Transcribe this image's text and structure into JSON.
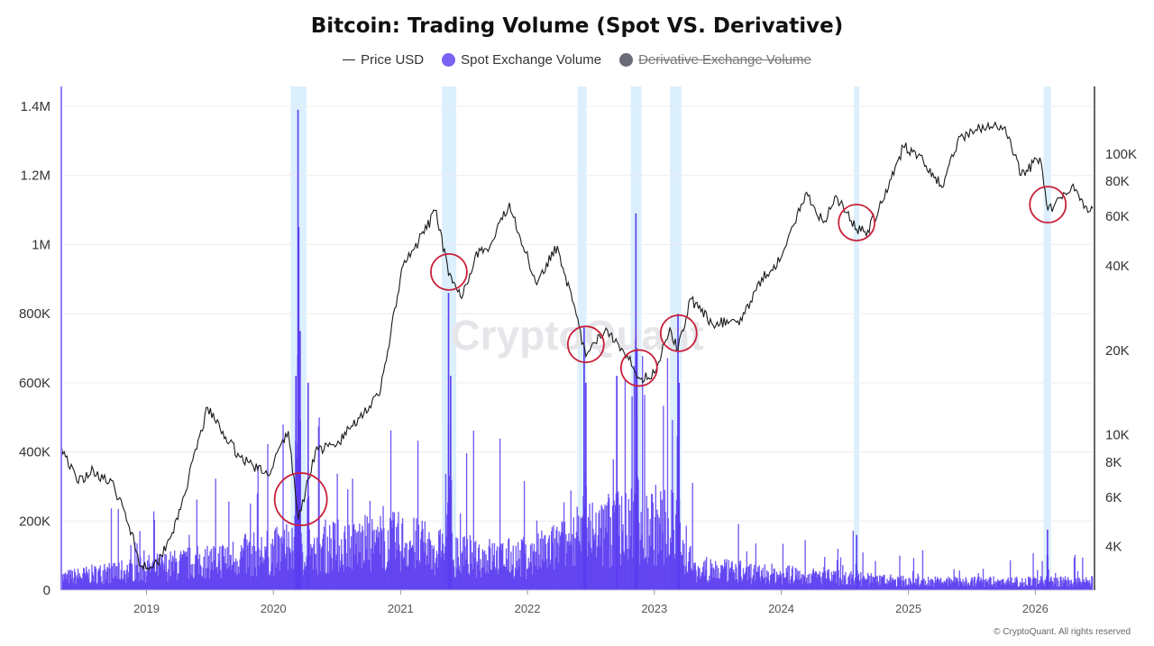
{
  "title": "Bitcoin: Trading Volume (Spot VS. Derivative)",
  "legend": {
    "price": "Price USD",
    "spot": "Spot Exchange Volume",
    "derivative": "Derivative Exchange Volume"
  },
  "watermark": "CryptoQuant",
  "copyright": "© CryptoQuant. All rights reserved",
  "colors": {
    "spot": "#5a3bf0",
    "price": "#1a1a1a",
    "highlight": "#dbeffd",
    "circle": "#c8203a",
    "derivative": "#6b6b78"
  },
  "chart_data": {
    "type": "bar",
    "x_axis": {
      "ticks": [
        "2019",
        "2020",
        "2021",
        "2022",
        "2023",
        "2024",
        "2025",
        "2026"
      ],
      "range": [
        "2018-05-01",
        "2026-06-15"
      ]
    },
    "y_left": {
      "ticks": [
        "0",
        "200K",
        "400K",
        "600K",
        "800K",
        "1M",
        "1.2M",
        "1.4M"
      ],
      "ylim": [
        0,
        1400000
      ]
    },
    "y_right": {
      "scale": "log",
      "ticks": [
        "4K",
        "6K",
        "8K",
        "10K",
        "20K",
        "40K",
        "60K",
        "80K",
        "100K"
      ],
      "ylim": [
        2800,
        150000
      ]
    },
    "grid": true,
    "series": [
      {
        "name": "Price USD",
        "type": "line",
        "axis": "right",
        "points": [
          [
            "2018-05-01",
            9200
          ],
          [
            "2018-06-15",
            6800
          ],
          [
            "2018-08-01",
            7500
          ],
          [
            "2018-10-01",
            6500
          ],
          [
            "2018-11-20",
            4500
          ],
          [
            "2018-12-15",
            3400
          ],
          [
            "2019-02-01",
            3500
          ],
          [
            "2019-04-01",
            5000
          ],
          [
            "2019-06-26",
            12500
          ],
          [
            "2019-08-01",
            10500
          ],
          [
            "2019-09-25",
            8400
          ],
          [
            "2019-12-15",
            7200
          ],
          [
            "2020-02-13",
            10300
          ],
          [
            "2020-03-13",
            5000
          ],
          [
            "2020-05-01",
            8800
          ],
          [
            "2020-07-01",
            9200
          ],
          [
            "2020-09-01",
            11500
          ],
          [
            "2020-11-01",
            13800
          ],
          [
            "2021-01-08",
            40000
          ],
          [
            "2021-02-10",
            46000
          ],
          [
            "2021-04-14",
            63000
          ],
          [
            "2021-05-19",
            37000
          ],
          [
            "2021-06-22",
            31000
          ],
          [
            "2021-08-15",
            46000
          ],
          [
            "2021-09-10",
            45000
          ],
          [
            "2021-11-10",
            67000
          ],
          [
            "2022-01-24",
            35000
          ],
          [
            "2022-03-28",
            47000
          ],
          [
            "2022-05-10",
            30000
          ],
          [
            "2022-06-18",
            19000
          ],
          [
            "2022-08-15",
            24000
          ],
          [
            "2022-10-15",
            19300
          ],
          [
            "2022-11-21",
            15800
          ],
          [
            "2023-01-01",
            16600
          ],
          [
            "2023-02-15",
            24000
          ],
          [
            "2023-03-10",
            20000
          ],
          [
            "2023-04-14",
            30500
          ],
          [
            "2023-06-15",
            25000
          ],
          [
            "2023-09-10",
            25500
          ],
          [
            "2023-10-25",
            34500
          ],
          [
            "2023-12-31",
            42500
          ],
          [
            "2024-03-14",
            73000
          ],
          [
            "2024-05-01",
            57000
          ],
          [
            "2024-06-07",
            71000
          ],
          [
            "2024-08-05",
            54000
          ],
          [
            "2024-09-06",
            53500
          ],
          [
            "2024-10-20",
            68000
          ],
          [
            "2024-12-17",
            106000
          ],
          [
            "2025-02-01",
            100000
          ],
          [
            "2025-04-08",
            76000
          ],
          [
            "2025-05-22",
            111000
          ],
          [
            "2025-07-14",
            122000
          ],
          [
            "2025-08-14",
            124000
          ],
          [
            "2025-10-06",
            125000
          ],
          [
            "2025-11-21",
            84000
          ],
          [
            "2026-01-14",
            97000
          ],
          [
            "2026-02-06",
            63000
          ],
          [
            "2026-03-15",
            70000
          ],
          [
            "2026-04-20",
            78000
          ],
          [
            "2026-06-01",
            62000
          ],
          [
            "2026-06-15",
            64000
          ]
        ]
      },
      {
        "name": "Spot Exchange Volume",
        "type": "bar",
        "axis": "left",
        "baseline_levels": [
          [
            "2018-05-01",
            35000
          ],
          [
            "2019-06-01",
            80000
          ],
          [
            "2020-03-01",
            120000
          ],
          [
            "2021-01-01",
            140000
          ],
          [
            "2021-06-01",
            100000
          ],
          [
            "2022-01-01",
            90000
          ],
          [
            "2022-06-01",
            150000
          ],
          [
            "2022-11-01",
            200000
          ],
          [
            "2023-03-01",
            180000
          ],
          [
            "2023-05-01",
            60000
          ],
          [
            "2024-01-01",
            45000
          ],
          [
            "2025-01-01",
            25000
          ],
          [
            "2026-06-15",
            25000
          ]
        ],
        "spikes": [
          [
            "2020-03-12",
            1390000
          ],
          [
            "2020-03-14",
            1050000
          ],
          [
            "2020-03-18",
            750000
          ],
          [
            "2020-03-06",
            620000
          ],
          [
            "2020-04-10",
            600000
          ],
          [
            "2021-05-19",
            860000
          ],
          [
            "2021-05-25",
            620000
          ],
          [
            "2022-06-13",
            760000
          ],
          [
            "2022-06-18",
            600000
          ],
          [
            "2022-11-09",
            1090000
          ],
          [
            "2022-11-12",
            700000
          ],
          [
            "2022-09-15",
            620000
          ],
          [
            "2023-03-10",
            800000
          ],
          [
            "2023-03-13",
            600000
          ],
          [
            "2024-08-05",
            160000
          ],
          [
            "2026-02-05",
            175000
          ]
        ]
      }
    ],
    "highlight_bands": [
      [
        "2020-02-20",
        "2020-04-05"
      ],
      [
        "2021-04-30",
        "2021-06-10"
      ],
      [
        "2022-05-25",
        "2022-06-20"
      ],
      [
        "2022-10-25",
        "2022-11-25"
      ],
      [
        "2023-02-15",
        "2023-03-20"
      ],
      [
        "2024-07-28",
        "2024-08-12"
      ],
      [
        "2026-01-25",
        "2026-02-15"
      ]
    ],
    "annotations": [
      {
        "shape": "circle",
        "date": "2020-03-20",
        "price": 5900
      },
      {
        "shape": "circle",
        "date": "2021-05-20",
        "price": 38000
      },
      {
        "shape": "circle",
        "date": "2022-06-18",
        "price": 21000
      },
      {
        "shape": "circle",
        "date": "2022-11-18",
        "price": 17300
      },
      {
        "shape": "circle",
        "date": "2023-03-12",
        "price": 23000
      },
      {
        "shape": "circle",
        "date": "2024-08-05",
        "price": 57000
      },
      {
        "shape": "circle",
        "date": "2026-02-06",
        "price": 66000
      }
    ]
  }
}
